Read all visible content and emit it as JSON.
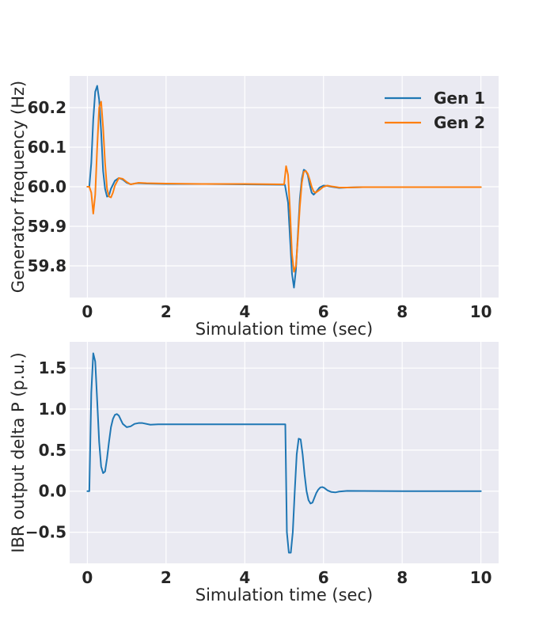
{
  "chart_data": [
    {
      "type": "line",
      "title": "",
      "xlabel": "Simulation time (sec)",
      "ylabel": "Generator frequency (Hz)",
      "xlim": [
        -0.45,
        10.45
      ],
      "ylim": [
        59.72,
        60.28
      ],
      "xticks": [
        0,
        2,
        4,
        6,
        8,
        10
      ],
      "yticks": [
        59.8,
        59.9,
        60.0,
        60.1,
        60.2
      ],
      "xtick_labels": [
        "0",
        "2",
        "4",
        "6",
        "8",
        "10"
      ],
      "ytick_labels": [
        "59.8",
        "59.9",
        "60.0",
        "60.1",
        "60.2"
      ],
      "grid": true,
      "legend": "top-right",
      "series": [
        {
          "name": "Gen 1",
          "color": "#1f77b4",
          "x": [
            0,
            0.05,
            0.1,
            0.15,
            0.2,
            0.25,
            0.3,
            0.35,
            0.4,
            0.45,
            0.5,
            0.55,
            0.6,
            0.7,
            0.8,
            0.9,
            1.0,
            1.1,
            1.2,
            1.3,
            1.5,
            2.0,
            3.0,
            4.0,
            5.0,
            5.02,
            5.1,
            5.15,
            5.2,
            5.25,
            5.3,
            5.35,
            5.4,
            5.45,
            5.5,
            5.55,
            5.6,
            5.65,
            5.7,
            5.75,
            5.8,
            5.9,
            6.0,
            6.1,
            6.2,
            6.4,
            6.6,
            7.0,
            8.0,
            9.0,
            10.0
          ],
          "y": [
            60.0,
            60.0,
            60.06,
            60.17,
            60.24,
            60.255,
            60.22,
            60.14,
            60.04,
            59.995,
            59.975,
            59.978,
            59.995,
            60.015,
            60.022,
            60.018,
            60.01,
            60.006,
            60.008,
            60.009,
            60.008,
            60.007,
            60.007,
            60.006,
            60.005,
            60.005,
            59.96,
            59.87,
            59.78,
            59.745,
            59.79,
            59.88,
            59.97,
            60.02,
            60.043,
            60.04,
            60.03,
            60.005,
            59.985,
            59.98,
            59.985,
            59.998,
            60.003,
            60.002,
            60.0,
            59.997,
            59.998,
            59.999,
            59.999,
            59.999,
            59.999
          ]
        },
        {
          "name": "Gen 2",
          "color": "#ff7f0e",
          "x": [
            0,
            0.05,
            0.1,
            0.15,
            0.2,
            0.25,
            0.3,
            0.35,
            0.4,
            0.45,
            0.5,
            0.55,
            0.6,
            0.65,
            0.7,
            0.8,
            0.9,
            1.0,
            1.1,
            1.2,
            1.3,
            1.5,
            2.0,
            3.0,
            4.0,
            5.0,
            5.05,
            5.1,
            5.15,
            5.2,
            5.25,
            5.3,
            5.35,
            5.4,
            5.45,
            5.5,
            5.55,
            5.6,
            5.65,
            5.7,
            5.75,
            5.8,
            5.9,
            6.0,
            6.1,
            6.2,
            6.4,
            6.6,
            7.0,
            8.0,
            9.0,
            10.0
          ],
          "y": [
            60.0,
            60.0,
            59.985,
            59.932,
            59.98,
            60.1,
            60.2,
            60.215,
            60.15,
            60.06,
            59.995,
            59.975,
            59.973,
            59.985,
            60.003,
            60.022,
            60.02,
            60.012,
            60.006,
            60.008,
            60.01,
            60.009,
            60.008,
            60.007,
            60.007,
            60.006,
            60.052,
            60.03,
            59.94,
            59.83,
            59.785,
            59.8,
            59.87,
            59.95,
            60.01,
            60.038,
            60.04,
            60.033,
            60.018,
            60.0,
            59.988,
            59.985,
            59.992,
            60.0,
            60.003,
            60.001,
            59.998,
            59.998,
            59.999,
            59.999,
            59.999,
            59.999
          ]
        }
      ]
    },
    {
      "type": "line",
      "title": "",
      "xlabel": "Simulation time (sec)",
      "ylabel": "IBR output delta P (p.u.)",
      "xlim": [
        -0.45,
        10.45
      ],
      "ylim": [
        -0.88,
        1.82
      ],
      "xticks": [
        0,
        2,
        4,
        6,
        8,
        10
      ],
      "yticks": [
        -0.5,
        0.0,
        0.5,
        1.0,
        1.5
      ],
      "xtick_labels": [
        "0",
        "2",
        "4",
        "6",
        "8",
        "10"
      ],
      "ytick_labels": [
        "−0.5",
        "0.0",
        "0.5",
        "1.0",
        "1.5"
      ],
      "grid": true,
      "legend": "none",
      "series": [
        {
          "color": "#1f77b4",
          "x": [
            0,
            0.05,
            0.1,
            0.15,
            0.2,
            0.25,
            0.3,
            0.35,
            0.4,
            0.45,
            0.5,
            0.55,
            0.6,
            0.65,
            0.7,
            0.75,
            0.8,
            0.85,
            0.9,
            1.0,
            1.1,
            1.2,
            1.3,
            1.4,
            1.6,
            1.8,
            2.0,
            3.0,
            4.0,
            5.0,
            5.03,
            5.07,
            5.12,
            5.17,
            5.22,
            5.27,
            5.32,
            5.37,
            5.42,
            5.47,
            5.52,
            5.57,
            5.62,
            5.67,
            5.72,
            5.77,
            5.82,
            5.87,
            5.92,
            5.97,
            6.02,
            6.1,
            6.2,
            6.3,
            6.4,
            6.6,
            7.0,
            8.0,
            9.0,
            10.0
          ],
          "y": [
            0.0,
            0.0,
            1.2,
            1.68,
            1.58,
            1.1,
            0.6,
            0.3,
            0.22,
            0.24,
            0.4,
            0.6,
            0.78,
            0.88,
            0.93,
            0.94,
            0.92,
            0.87,
            0.82,
            0.78,
            0.79,
            0.82,
            0.83,
            0.83,
            0.81,
            0.815,
            0.815,
            0.815,
            0.815,
            0.815,
            0.815,
            -0.5,
            -0.75,
            -0.75,
            -0.5,
            0.0,
            0.45,
            0.64,
            0.63,
            0.45,
            0.2,
            0.0,
            -0.11,
            -0.15,
            -0.14,
            -0.08,
            -0.02,
            0.02,
            0.045,
            0.05,
            0.04,
            0.01,
            -0.01,
            -0.015,
            -0.005,
            0.003,
            0.002,
            0.0,
            0.0,
            0.0
          ]
        }
      ]
    }
  ]
}
